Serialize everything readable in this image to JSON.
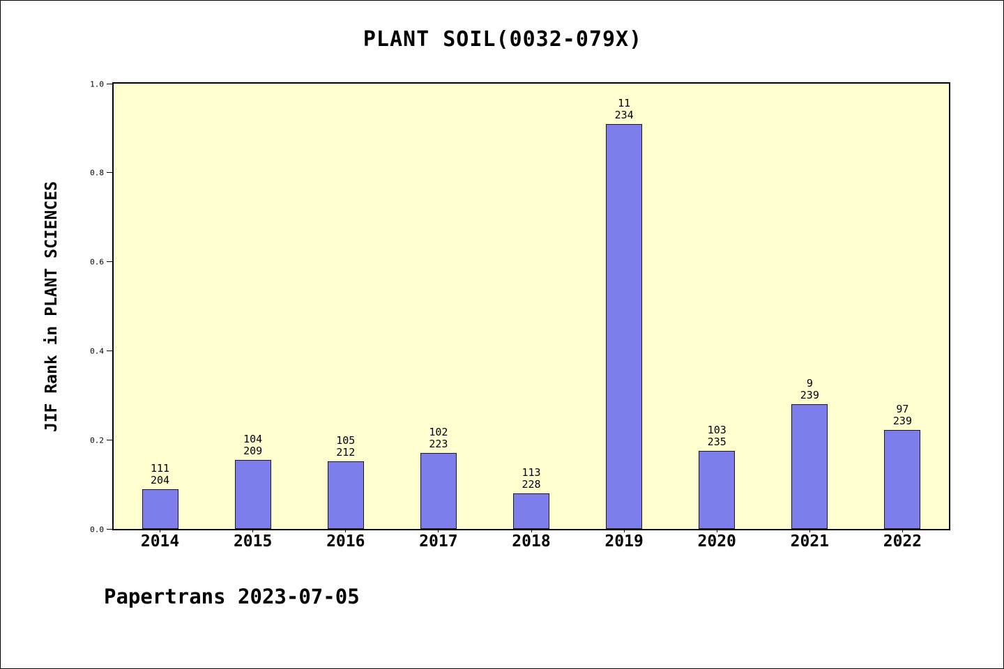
{
  "chart_data": {
    "type": "bar",
    "title": "PLANT SOIL(0032-079X)",
    "ylabel": "JIF Rank in PLANT SCIENCES",
    "xlabel": "",
    "categories": [
      "2014",
      "2015",
      "2016",
      "2017",
      "2018",
      "2019",
      "2020",
      "2021",
      "2022"
    ],
    "values": [
      0.09,
      0.155,
      0.152,
      0.17,
      0.08,
      0.91,
      0.175,
      0.28,
      0.222
    ],
    "bar_labels": [
      {
        "rank": "111",
        "total": "204"
      },
      {
        "rank": "104",
        "total": "209"
      },
      {
        "rank": "105",
        "total": "212"
      },
      {
        "rank": "102",
        "total": "223"
      },
      {
        "rank": "113",
        "total": "228"
      },
      {
        "rank": "11",
        "total": "234"
      },
      {
        "rank": "103",
        "total": "235"
      },
      {
        "rank": "9",
        "total": "239"
      },
      {
        "rank": "97",
        "total": "239"
      }
    ],
    "ylim": [
      0,
      1
    ],
    "yticks": [
      "0.0",
      "0.2",
      "0.4",
      "0.6",
      "0.8",
      "1.0"
    ],
    "grid": false,
    "legend": "none",
    "colors": {
      "bar": "#7d7deb",
      "bar_edge": "#1a1a1a",
      "plot_bg": "#ffffcf",
      "page_bg": "#ffffff"
    }
  },
  "footer": {
    "text": "Papertrans 2023-07-05"
  }
}
